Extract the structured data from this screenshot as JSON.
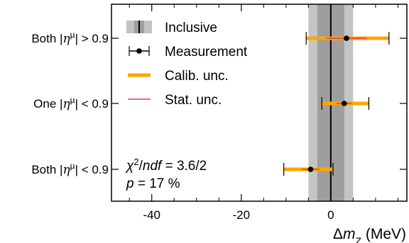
{
  "chart_data": {
    "type": "scatter",
    "orientation": "horizontal-errorbar",
    "categories": [
      "Both |ηµ| > 0.9",
      "One |ηµ| < 0.9",
      "Both |ηµ| < 0.9"
    ],
    "category_parts": [
      {
        "pre": "Both |",
        "eta": "η",
        "sup": "µ",
        "post": "| > 0.9"
      },
      {
        "pre": "One |",
        "eta": "η",
        "sup": "µ",
        "post": "| < 0.9"
      },
      {
        "pre": "Both |",
        "eta": "η",
        "sup": "µ",
        "post": "| < 0.9"
      }
    ],
    "series": [
      {
        "name": "Measurement",
        "values": [
          3.5,
          3.0,
          -4.5
        ]
      },
      {
        "name": "Calib. unc.",
        "low": [
          -5.5,
          -2.0,
          -10.5
        ],
        "high": [
          13.0,
          8.5,
          0.5
        ]
      },
      {
        "name": "Stat. unc.",
        "low": [
          -1.0,
          1.3,
          -6.5
        ],
        "high": [
          8.0,
          4.7,
          -2.5
        ]
      }
    ],
    "inclusive": {
      "center": 0.0,
      "inner_band": [
        -3.0,
        3.0
      ],
      "outer_band": [
        -5.0,
        5.0
      ],
      "line": 0.0
    },
    "xlim": [
      -49,
      17
    ],
    "xticks": [
      -40,
      -20,
      0
    ],
    "xlabel": {
      "main": "Δ",
      "var": "m",
      "sub": "Z",
      "unit": " (MeV)"
    },
    "legend": {
      "placement": "top-left",
      "entries": [
        "Inclusive",
        "Measurement",
        "Calib. unc.",
        "Stat. unc."
      ]
    },
    "annotations": {
      "chi2": {
        "sym": "χ",
        "sup": "2",
        "slash": "/",
        "ndf": "ndf",
        "rest": " = 3.6/2"
      },
      "p": {
        "sym": "p",
        "rest": " = 17 %"
      }
    },
    "colors": {
      "band_outer": "#c4c4c4",
      "band_inner": "#9e9e9e",
      "calib": "#ffa500",
      "stat": "#e83a3a",
      "marker": "#000000"
    }
  }
}
